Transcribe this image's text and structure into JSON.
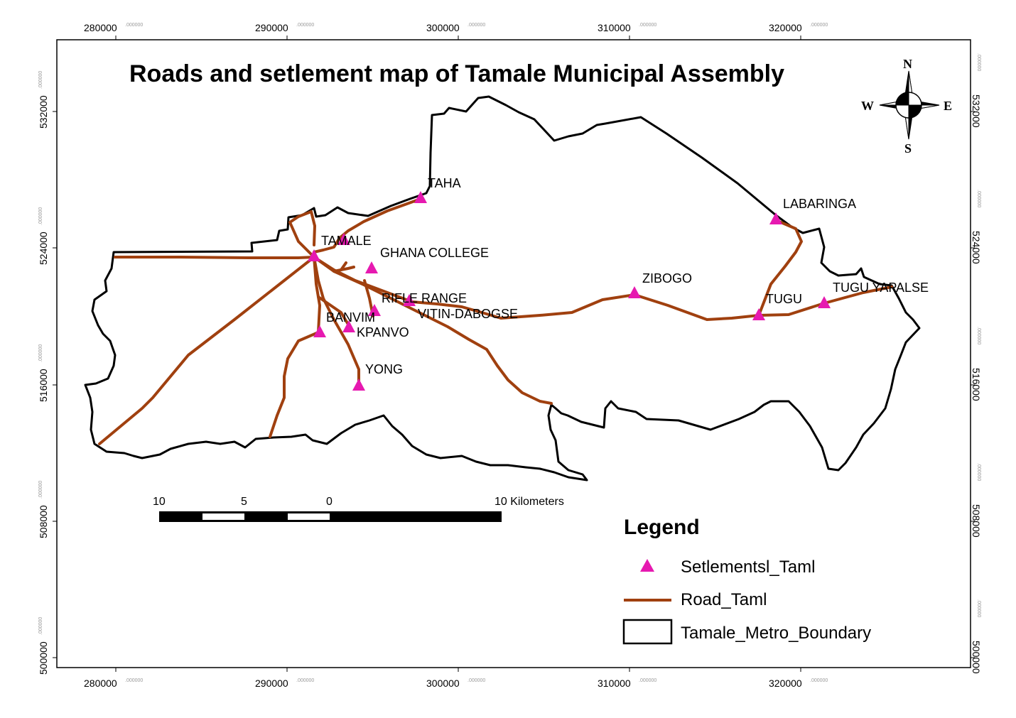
{
  "map": {
    "title": "Roads and setlement map of Tamale Municipal Assembly",
    "x_ticks": [
      {
        "main": "280000",
        "dec": ".000000"
      },
      {
        "main": "290000",
        "dec": ".000000"
      },
      {
        "main": "300000",
        "dec": ".000000"
      },
      {
        "main": "310000",
        "dec": ".000000"
      },
      {
        "main": "320000",
        "dec": ".000000"
      }
    ],
    "y_ticks": [
      {
        "main": "532000",
        "dec": ".000000"
      },
      {
        "main": "524000",
        "dec": ".000000"
      },
      {
        "main": "516000",
        "dec": ".000000"
      },
      {
        "main": "508000",
        "dec": ".000000"
      },
      {
        "main": "500000",
        "dec": ".000000"
      }
    ],
    "settlements": [
      "TAHA",
      "TAMALE",
      "GHANA COLLEGE",
      "RIFLE RANGE",
      "VITIN-DABOGSE",
      "BANVIM",
      "KPANVO",
      "YONG",
      "ZIBOGO",
      "LABARINGA",
      "TUGU",
      "TUGU YAPALSE"
    ],
    "compass": {
      "n": "N",
      "s": "S",
      "e": "E",
      "w": "W"
    },
    "scale_bar": {
      "labels": [
        "10",
        "5",
        "0",
        "10 Kilometers"
      ]
    },
    "legend": {
      "title": "Legend",
      "items": [
        "Setlementsl_Taml",
        "Road_Taml",
        "Tamale_Metro_Boundary"
      ]
    },
    "colors": {
      "road": "#a0400f",
      "settlement": "#e619b0",
      "boundary": "#000000"
    }
  }
}
